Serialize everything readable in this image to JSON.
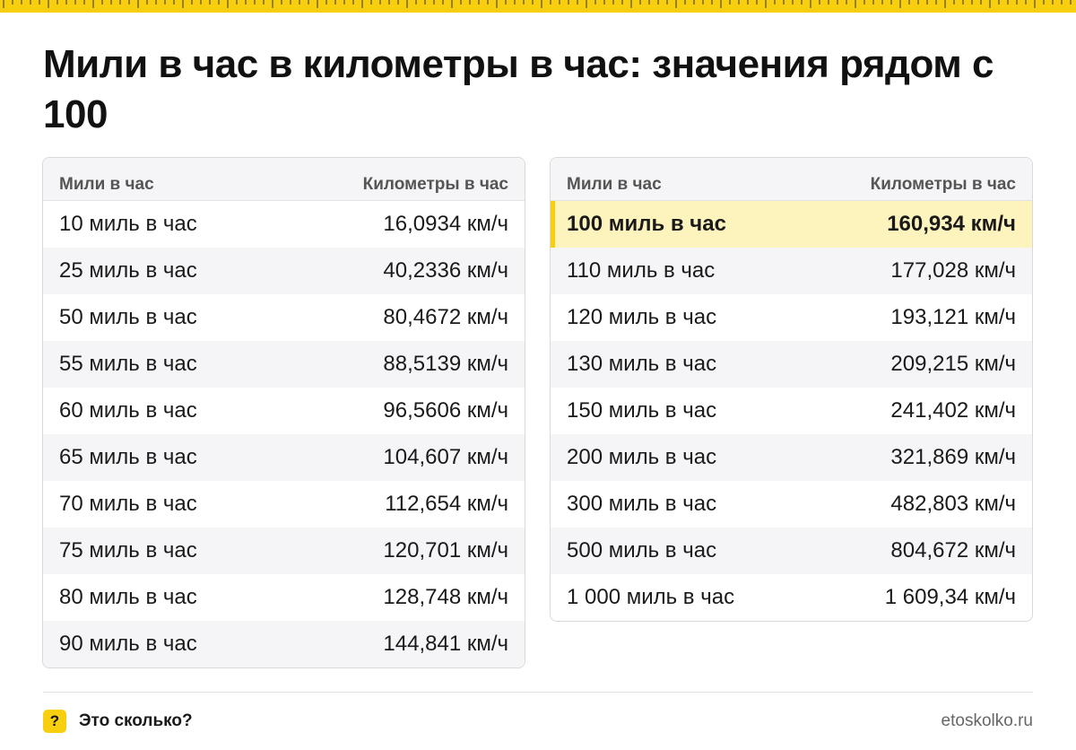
{
  "colors": {
    "accent": "#f7cf0f",
    "highlight_row": "#fdf3bd",
    "stripe": "#f5f5f7"
  },
  "title": "Мили в час в километры в час: значения рядом с 100",
  "tables": [
    {
      "headers": [
        "Мили в час",
        "Километры в час"
      ],
      "rows": [
        [
          "10 миль в час",
          "16,0934 км/ч"
        ],
        [
          "25 миль в час",
          "40,2336 км/ч"
        ],
        [
          "50 миль в час",
          "80,4672 км/ч"
        ],
        [
          "55 миль в час",
          "88,5139 км/ч"
        ],
        [
          "60 миль в час",
          "96,5606 км/ч"
        ],
        [
          "65 миль в час",
          "104,607 км/ч"
        ],
        [
          "70 миль в час",
          "112,654 км/ч"
        ],
        [
          "75 миль в час",
          "120,701 км/ч"
        ],
        [
          "80 миль в час",
          "128,748 км/ч"
        ],
        [
          "90 миль в час",
          "144,841 км/ч"
        ]
      ]
    },
    {
      "headers": [
        "Мили в час",
        "Километры в час"
      ],
      "highlighted_row": 0,
      "rows": [
        [
          "100 миль в час",
          "160,934 км/ч"
        ],
        [
          "110 миль в час",
          "177,028 км/ч"
        ],
        [
          "120 миль в час",
          "193,121 км/ч"
        ],
        [
          "130 миль в час",
          "209,215 км/ч"
        ],
        [
          "150 миль в час",
          "241,402 км/ч"
        ],
        [
          "200 миль в час",
          "321,869 км/ч"
        ],
        [
          "300 миль в час",
          "482,803 км/ч"
        ],
        [
          "500 миль в час",
          "804,672 км/ч"
        ],
        [
          "1 000 миль в час",
          "1 609,34 км/ч"
        ]
      ]
    }
  ],
  "footer": {
    "logo_glyph": "?",
    "logo_icon": "question-mark-icon",
    "brand": "Это сколько?",
    "site": "etoskolko.ru"
  }
}
